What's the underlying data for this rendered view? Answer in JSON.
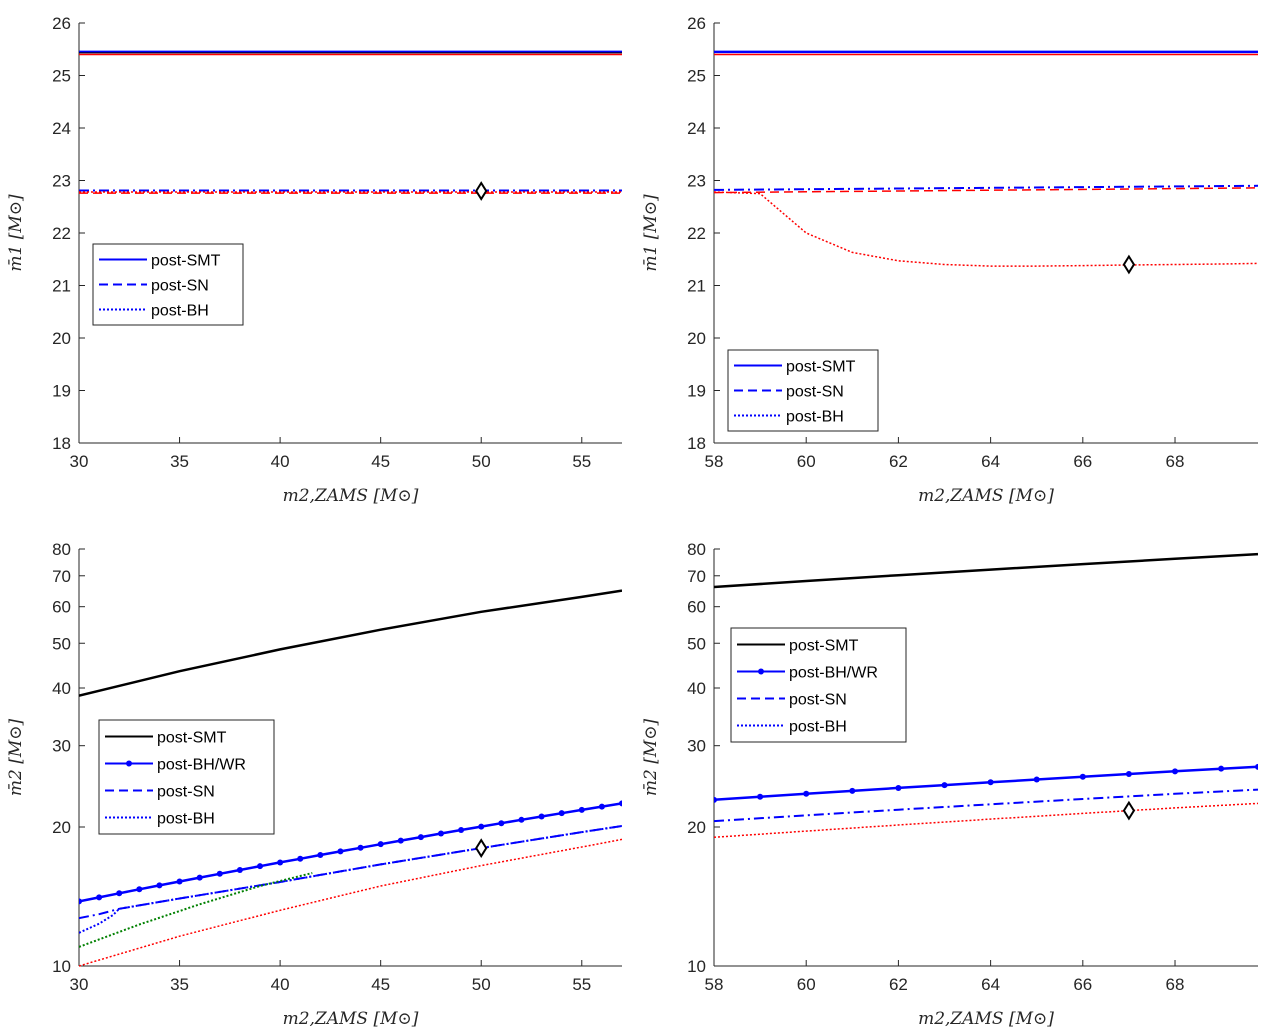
{
  "figure": {
    "description_free": true
  },
  "chart_data": [
    {
      "id": "tl",
      "type": "line",
      "xlabel": "m2,ZAMS [M⊙]",
      "ylabel": "m̄1 [M⊙]",
      "xlim": [
        30,
        57
      ],
      "ylim": [
        18,
        26
      ],
      "yscale": "linear",
      "xticks": [
        30,
        35,
        40,
        45,
        50,
        55
      ],
      "yticks": [
        18,
        19,
        20,
        21,
        22,
        23,
        24,
        25,
        26
      ],
      "legend": {
        "position": "middle-left",
        "entries": [
          {
            "label": "post-SMT",
            "style": "solid",
            "color": "#0000ff",
            "marker": false
          },
          {
            "label": "post-SN",
            "style": "dashed",
            "color": "#0000ff",
            "marker": false
          },
          {
            "label": "post-BH",
            "style": "dotted",
            "color": "#0000ff",
            "marker": false
          }
        ]
      },
      "series": [
        {
          "name": "post-SMT (blue)",
          "color": "#0000ff",
          "style": "solid",
          "width": 2.5,
          "x": [
            30,
            57
          ],
          "y": [
            25.45,
            25.45
          ]
        },
        {
          "name": "post-SMT (red)",
          "color": "#ff0000",
          "style": "solid",
          "width": 1.5,
          "x": [
            30,
            57
          ],
          "y": [
            25.4,
            25.4
          ]
        },
        {
          "name": "post-SMT (black)",
          "color": "#000000",
          "style": "solid",
          "width": 1,
          "x": [
            30,
            57
          ],
          "y": [
            25.43,
            25.43
          ]
        },
        {
          "name": "post-SN (red)",
          "color": "#ff0000",
          "style": "dashed",
          "width": 1.5,
          "x": [
            30,
            57
          ],
          "y": [
            22.76,
            22.76
          ]
        },
        {
          "name": "post-SN (blue)",
          "color": "#0000ff",
          "style": "dashdot",
          "width": 2,
          "x": [
            30,
            57
          ],
          "y": [
            22.81,
            22.81
          ]
        },
        {
          "name": "post-BH (red)",
          "color": "#ff0000",
          "style": "dotted",
          "width": 1.5,
          "x": [
            30,
            57
          ],
          "y": [
            22.78,
            22.78
          ]
        }
      ],
      "markers": [
        {
          "x": 50,
          "y": 22.8,
          "shape": "diamond"
        }
      ]
    },
    {
      "id": "tr",
      "type": "line",
      "xlabel": "m2,ZAMS [M⊙]",
      "ylabel": "m̄1 [M⊙]",
      "xlim": [
        58,
        69.8
      ],
      "ylim": [
        18,
        26
      ],
      "yscale": "linear",
      "xticks": [
        58,
        60,
        62,
        64,
        66,
        68
      ],
      "yticks": [
        18,
        19,
        20,
        21,
        22,
        23,
        24,
        25,
        26
      ],
      "legend": {
        "position": "bottom-left",
        "entries": [
          {
            "label": "post-SMT",
            "style": "solid",
            "color": "#0000ff",
            "marker": false
          },
          {
            "label": "post-SN",
            "style": "dashed",
            "color": "#0000ff",
            "marker": false
          },
          {
            "label": "post-BH",
            "style": "dotted",
            "color": "#0000ff",
            "marker": false
          }
        ]
      },
      "series": [
        {
          "name": "post-SMT (blue)",
          "color": "#0000ff",
          "style": "solid",
          "width": 2.5,
          "x": [
            58,
            69.8
          ],
          "y": [
            25.45,
            25.45
          ]
        },
        {
          "name": "post-SMT (red)",
          "color": "#ff0000",
          "style": "solid",
          "width": 1.5,
          "x": [
            58,
            69.8
          ],
          "y": [
            25.4,
            25.4
          ]
        },
        {
          "name": "post-SN (red)",
          "color": "#ff0000",
          "style": "dashed",
          "width": 1.5,
          "x": [
            58,
            69.8
          ],
          "y": [
            22.77,
            22.86
          ]
        },
        {
          "name": "post-SN (blue)",
          "color": "#0000ff",
          "style": "dashdot",
          "width": 2,
          "x": [
            58,
            69.8
          ],
          "y": [
            22.82,
            22.9
          ]
        },
        {
          "name": "post-BH (red)",
          "color": "#ff0000",
          "style": "dotted",
          "width": 1.5,
          "x": [
            58,
            59,
            60,
            61,
            62,
            63,
            64,
            65,
            66,
            67,
            68,
            69,
            69.8
          ],
          "y": [
            22.78,
            22.75,
            22.0,
            21.63,
            21.47,
            21.4,
            21.37,
            21.37,
            21.38,
            21.39,
            21.4,
            21.41,
            21.42
          ]
        }
      ],
      "markers": [
        {
          "x": 67,
          "y": 21.4,
          "shape": "diamond"
        }
      ]
    },
    {
      "id": "bl",
      "type": "line",
      "xlabel": "m2,ZAMS [M⊙]",
      "ylabel": "m̄2 [M⊙]",
      "xlim": [
        30,
        57
      ],
      "ylim": [
        10,
        80
      ],
      "yscale": "log",
      "xticks": [
        30,
        35,
        40,
        45,
        50,
        55
      ],
      "yticks": [
        10,
        20,
        30,
        40,
        50,
        60,
        70,
        80
      ],
      "legend": {
        "position": "middle-left",
        "entries": [
          {
            "label": "post-SMT",
            "style": "solid",
            "color": "#000000",
            "marker": false
          },
          {
            "label": "post-BH/WR",
            "style": "solid",
            "color": "#0000ff",
            "marker": true
          },
          {
            "label": "post-SN",
            "style": "dashed",
            "color": "#0000ff",
            "marker": false
          },
          {
            "label": "post-BH",
            "style": "dotted",
            "color": "#0000ff",
            "marker": false
          }
        ]
      },
      "series": [
        {
          "name": "post-SMT",
          "color": "#000000",
          "style": "solid",
          "width": 2.5,
          "x": [
            30,
            35,
            40,
            45,
            50,
            55,
            57
          ],
          "y": [
            38.5,
            43.5,
            48.5,
            53.5,
            58.5,
            63.0,
            65.0
          ]
        },
        {
          "name": "post-BH/WR",
          "color": "#0000ff",
          "style": "solid",
          "width": 2.5,
          "marker": true,
          "x": [
            30,
            31,
            32,
            33,
            34,
            35,
            36,
            37,
            38,
            39,
            40,
            41,
            42,
            43,
            44,
            45,
            46,
            47,
            48,
            49,
            50,
            51,
            52,
            53,
            54,
            55,
            56,
            57
          ],
          "y": [
            13.8,
            14.08,
            14.37,
            14.66,
            14.95,
            15.24,
            15.54,
            15.84,
            16.14,
            16.45,
            16.76,
            17.07,
            17.39,
            17.71,
            18.03,
            18.36,
            18.69,
            19.02,
            19.36,
            19.7,
            20.04,
            20.38,
            20.73,
            21.08,
            21.43,
            21.78,
            22.14,
            22.5
          ]
        },
        {
          "name": "post-SN",
          "color": "#0000ff",
          "style": "dashdot",
          "width": 2,
          "x": [
            30,
            31,
            32,
            35,
            40,
            42,
            45,
            50,
            55,
            57
          ],
          "y": [
            12.7,
            12.95,
            13.3,
            14.0,
            15.2,
            15.75,
            16.6,
            18.0,
            19.5,
            20.1
          ]
        },
        {
          "name": "post-BH (blue)",
          "color": "#0000ff",
          "style": "dotted",
          "width": 2,
          "x": [
            30,
            31,
            31.7,
            32,
            35,
            40,
            45,
            50,
            55,
            57
          ],
          "y": [
            11.8,
            12.35,
            12.9,
            13.3,
            14.0,
            15.2,
            16.6,
            18.0,
            19.5,
            20.1
          ]
        },
        {
          "name": "post-BH (green)",
          "color": "#008000",
          "style": "dotted",
          "width": 2,
          "x": [
            30,
            33,
            36,
            39,
            41.6
          ],
          "y": [
            11.0,
            12.3,
            13.6,
            14.9,
            15.9
          ]
        },
        {
          "name": "post-BH (red)",
          "color": "#ff0000",
          "style": "dotted",
          "width": 1.5,
          "x": [
            30,
            35,
            40,
            45,
            50,
            55,
            57
          ],
          "y": [
            10.0,
            11.6,
            13.2,
            14.9,
            16.5,
            18.1,
            18.8
          ]
        }
      ],
      "markers": [
        {
          "x": 50,
          "y": 18.0,
          "shape": "diamond"
        }
      ]
    },
    {
      "id": "br",
      "type": "line",
      "xlabel": "m2,ZAMS [M⊙]",
      "ylabel": "m̄2 [M⊙]",
      "xlim": [
        58,
        69.8
      ],
      "ylim": [
        10,
        80
      ],
      "yscale": "log",
      "xticks": [
        58,
        60,
        62,
        64,
        66,
        68
      ],
      "yticks": [
        10,
        20,
        30,
        40,
        50,
        60,
        70,
        80
      ],
      "legend": {
        "position": "upper-left",
        "entries": [
          {
            "label": "post-SMT",
            "style": "solid",
            "color": "#000000",
            "marker": false
          },
          {
            "label": "post-BH/WR",
            "style": "solid",
            "color": "#0000ff",
            "marker": true
          },
          {
            "label": "post-SN",
            "style": "dashed",
            "color": "#0000ff",
            "marker": false
          },
          {
            "label": "post-BH",
            "style": "dotted",
            "color": "#0000ff",
            "marker": false
          }
        ]
      },
      "series": [
        {
          "name": "post-SMT",
          "color": "#000000",
          "style": "solid",
          "width": 2.5,
          "x": [
            58,
            60,
            62,
            64,
            66,
            68,
            69.8
          ],
          "y": [
            66.2,
            68.2,
            70.2,
            72.2,
            74.2,
            76.2,
            78.0
          ]
        },
        {
          "name": "post-BH/WR",
          "color": "#0000ff",
          "style": "solid",
          "width": 2.5,
          "marker": true,
          "x": [
            58,
            59,
            60,
            61,
            62,
            63,
            64,
            65,
            66,
            67,
            68,
            69,
            69.8
          ],
          "y": [
            22.9,
            23.25,
            23.6,
            23.95,
            24.3,
            24.65,
            25.0,
            25.35,
            25.7,
            26.05,
            26.4,
            26.75,
            27.0
          ]
        },
        {
          "name": "post-SN",
          "color": "#0000ff",
          "style": "dashdot",
          "width": 2,
          "x": [
            58,
            60,
            62,
            64,
            66,
            68,
            69.8
          ],
          "y": [
            20.6,
            21.2,
            21.8,
            22.4,
            23.0,
            23.6,
            24.1
          ]
        },
        {
          "name": "post-BH (red)",
          "color": "#ff0000",
          "style": "dotted",
          "width": 1.5,
          "x": [
            58,
            60,
            62,
            64,
            66,
            68,
            69.8
          ],
          "y": [
            19.0,
            19.6,
            20.2,
            20.8,
            21.4,
            22.0,
            22.5
          ]
        }
      ],
      "markers": [
        {
          "x": 67,
          "y": 21.7,
          "shape": "diamond"
        }
      ]
    }
  ]
}
